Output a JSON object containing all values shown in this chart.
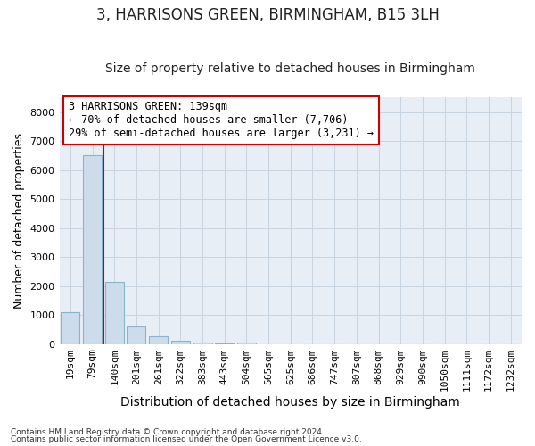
{
  "title": "3, HARRISONS GREEN, BIRMINGHAM, B15 3LH",
  "subtitle": "Size of property relative to detached houses in Birmingham",
  "xlabel": "Distribution of detached houses by size in Birmingham",
  "ylabel": "Number of detached properties",
  "bar_labels": [
    "19sqm",
    "79sqm",
    "140sqm",
    "201sqm",
    "261sqm",
    "322sqm",
    "383sqm",
    "443sqm",
    "504sqm",
    "565sqm",
    "625sqm",
    "686sqm",
    "747sqm",
    "807sqm",
    "868sqm",
    "929sqm",
    "990sqm",
    "1050sqm",
    "1111sqm",
    "1172sqm",
    "1232sqm"
  ],
  "bar_values": [
    1100,
    6500,
    2150,
    600,
    280,
    130,
    70,
    40,
    50,
    0,
    0,
    0,
    0,
    0,
    0,
    0,
    0,
    0,
    0,
    0,
    0
  ],
  "bar_color": "#ccdceb",
  "bar_edge_color": "#8ab4cc",
  "vline_x_index": 2,
  "vline_color": "#cc0000",
  "ylim": [
    0,
    8500
  ],
  "yticks": [
    0,
    1000,
    2000,
    3000,
    4000,
    5000,
    6000,
    7000,
    8000
  ],
  "annotation_text": "3 HARRISONS GREEN: 139sqm\n← 70% of detached houses are smaller (7,706)\n29% of semi-detached houses are larger (3,231) →",
  "annotation_box_color": "#ffffff",
  "annotation_box_edge": "#cc0000",
  "footnote1": "Contains HM Land Registry data © Crown copyright and database right 2024.",
  "footnote2": "Contains public sector information licensed under the Open Government Licence v3.0.",
  "bg_color": "#ffffff",
  "plot_bg_color": "#e8eef5",
  "grid_color": "#c8d4e0",
  "title_fontsize": 12,
  "subtitle_fontsize": 10,
  "axis_label_fontsize": 9,
  "tick_fontsize": 8,
  "annotation_fontsize": 8.5
}
